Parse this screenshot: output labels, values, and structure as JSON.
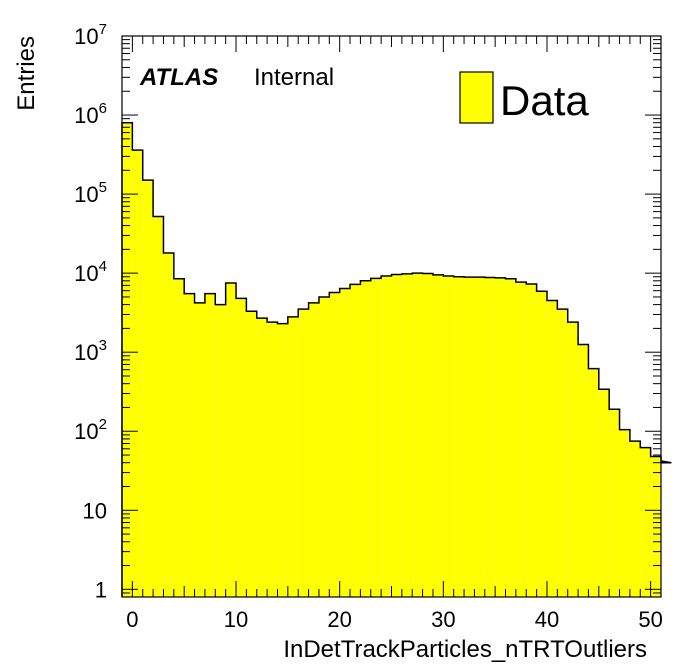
{
  "colors": {
    "fill": "#ffff00",
    "line": "#000000",
    "background": "#ffffff"
  },
  "label": {
    "experiment": "ATLAS",
    "status": "Internal"
  },
  "legend": {
    "entry": "Data",
    "position": "top-right"
  },
  "chart_data": {
    "type": "bar",
    "histogram": true,
    "xlabel": "InDetTrackParticles_nTRTOutliers",
    "ylabel": "Entries",
    "xlim": [
      -1,
      51
    ],
    "ylim": [
      0.8,
      10000000
    ],
    "y_scale": "log",
    "bin_width": 1,
    "x_ticks": [
      0,
      10,
      20,
      30,
      40,
      50
    ],
    "x_tick_labels": [
      "0",
      "10",
      "20",
      "30",
      "40",
      "50"
    ],
    "y_tick_labels": [
      {
        "value": 1,
        "base": "1",
        "exp": ""
      },
      {
        "value": 10,
        "base": "10",
        "exp": ""
      },
      {
        "value": 100,
        "base": "10",
        "exp": "2"
      },
      {
        "value": 1000,
        "base": "10",
        "exp": "3"
      },
      {
        "value": 10000,
        "base": "10",
        "exp": "4"
      },
      {
        "value": 100000,
        "base": "10",
        "exp": "5"
      },
      {
        "value": 1000000,
        "base": "10",
        "exp": "6"
      },
      {
        "value": 10000000,
        "base": "10",
        "exp": "7"
      }
    ],
    "grid": false,
    "series": [
      {
        "name": "Data",
        "bin_edges_start": -1,
        "values": [
          800000,
          360000,
          150000,
          52000,
          18000,
          8500,
          5500,
          4200,
          5500,
          4000,
          7500,
          4800,
          3300,
          2700,
          2400,
          2300,
          2800,
          3500,
          4200,
          5000,
          5700,
          6400,
          7200,
          8000,
          8600,
          9200,
          9600,
          9800,
          10000,
          9900,
          9500,
          9200,
          9000,
          8900,
          8900,
          8800,
          8700,
          8500,
          7700,
          7300,
          5900,
          4500,
          3500,
          2400,
          1250,
          620,
          340,
          190,
          105,
          75,
          62,
          48,
          42,
          40
        ]
      }
    ]
  }
}
